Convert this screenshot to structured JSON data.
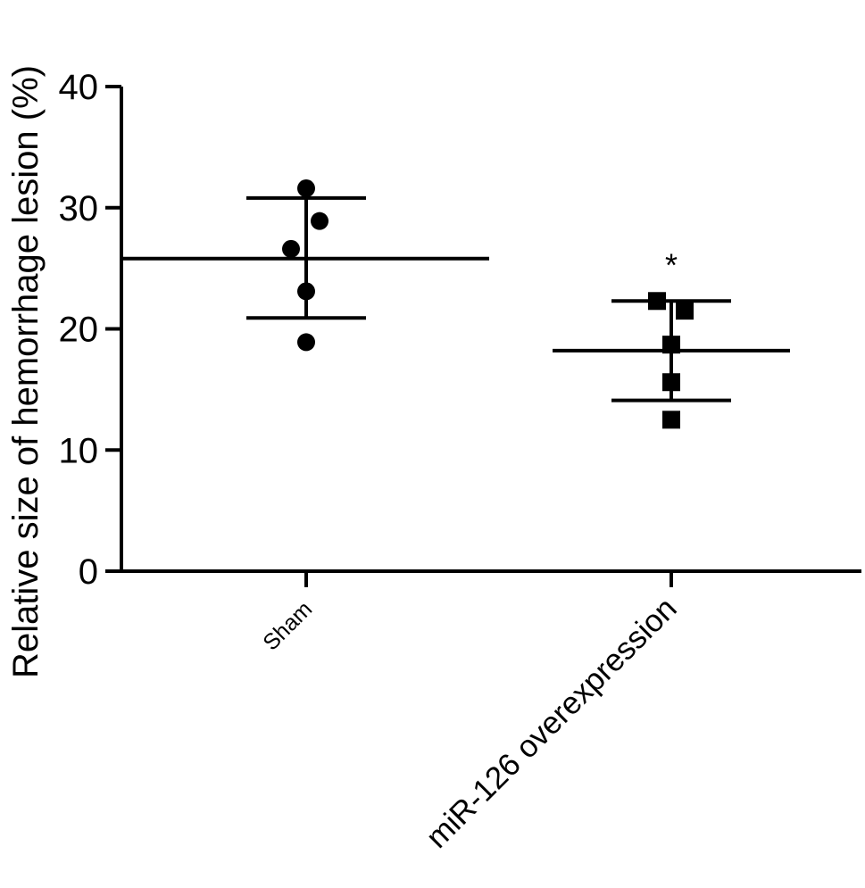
{
  "chart_data": {
    "type": "scatter",
    "title": "",
    "xlabel": "",
    "ylabel": "Relative size of hemorrhage lesion (%)",
    "ylim": [
      0,
      40
    ],
    "yticks": [
      0,
      10,
      20,
      30,
      40
    ],
    "grid": false,
    "categories": [
      "Sham",
      "miR-126 overexpression"
    ],
    "series": [
      {
        "category": "Sham",
        "marker": "circle",
        "values": [
          31.6,
          28.9,
          26.6,
          23.1,
          18.9
        ],
        "mean": 25.8,
        "sd_upper": 30.8,
        "sd_lower": 20.9
      },
      {
        "category": "miR-126 overexpression",
        "marker": "square",
        "values": [
          22.3,
          21.5,
          18.7,
          15.6,
          12.5
        ],
        "mean": 18.2,
        "sd_upper": 22.3,
        "sd_lower": 14.1
      }
    ],
    "annotations": [
      {
        "category": "miR-126 overexpression",
        "text": "*"
      }
    ]
  }
}
